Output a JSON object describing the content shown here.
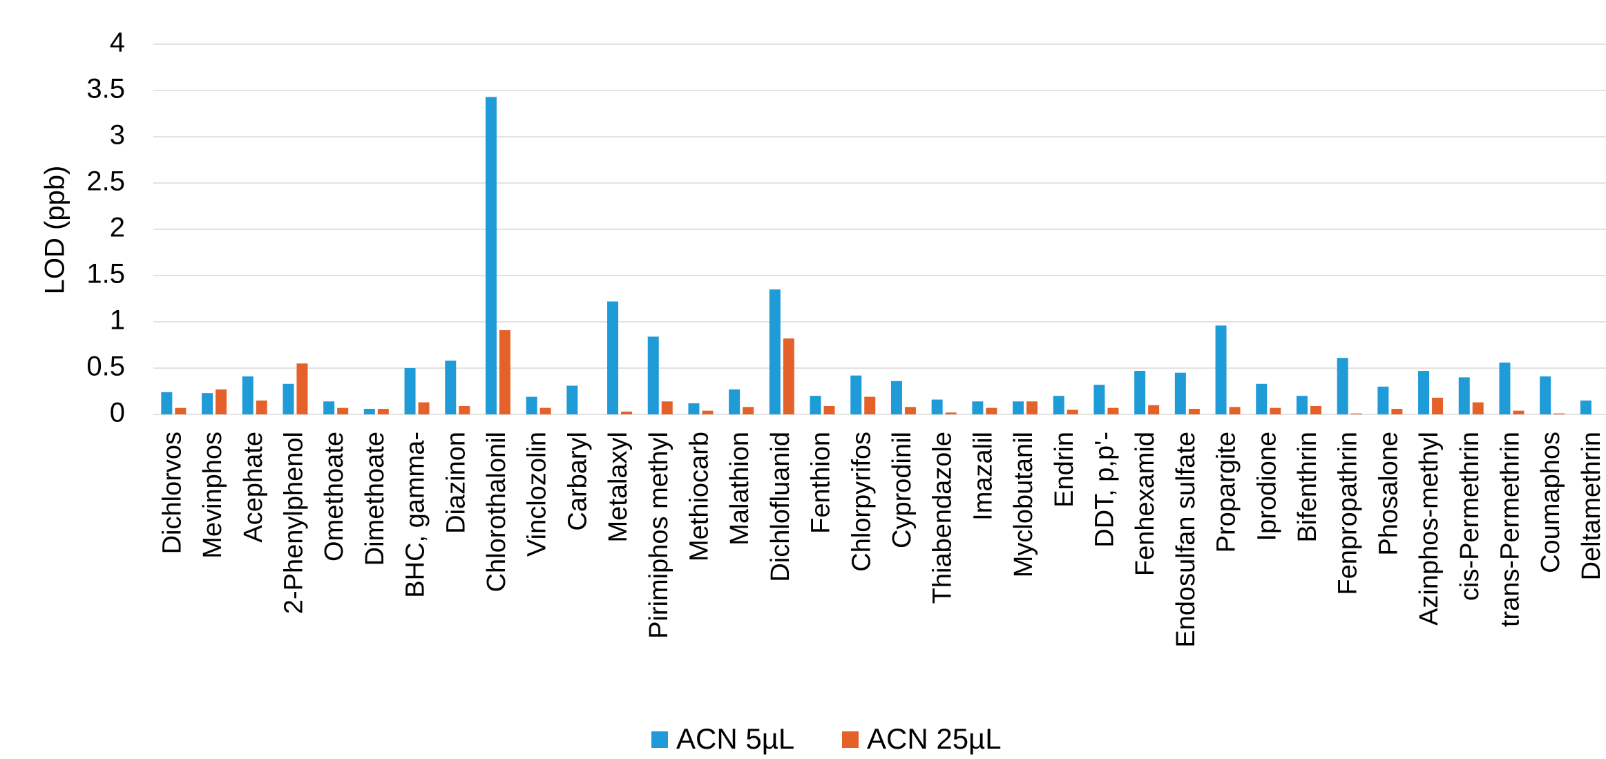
{
  "chart_data": {
    "type": "bar",
    "y_label": "LOD (ppb)",
    "categories": [
      "Dichlorvos",
      "Mevinphos",
      "Acephate",
      "2-Phenylphenol",
      "Omethoate",
      "Dimethoate",
      "BHC, gamma-",
      "Diazinon",
      "Chlorothalonil",
      "Vinclozolin",
      "Carbaryl",
      "Metalaxyl",
      "Pirimiphos methyl",
      "Methiocarb",
      "Malathion",
      "Dichlofluanid",
      "Fenthion",
      "Chlorpyrifos",
      "Cyprodinil",
      "Thiabendazole",
      "Imazalil",
      "Myclobutanil",
      "Endrin",
      "DDT, p,p'-",
      "Fenhexamid",
      "Endosulfan sulfate",
      "Propargite",
      "Iprodione",
      "Bifenthrin",
      "Fenpropathrin",
      "Phosalone",
      "Azinphos-methyl",
      "cis-Permethrin",
      "trans-Permethrin",
      "Coumaphos",
      "Deltamethrin"
    ],
    "series": [
      {
        "name": "ACN 5µL",
        "color": "#1f9bd7",
        "values": [
          0.24,
          0.23,
          0.41,
          0.33,
          0.14,
          0.06,
          0.5,
          0.58,
          3.43,
          0.19,
          0.31,
          1.22,
          0.84,
          0.12,
          0.27,
          1.35,
          0.2,
          0.42,
          0.36,
          0.16,
          0.14,
          0.14,
          0.2,
          0.32,
          0.47,
          0.45,
          0.96,
          0.33,
          0.2,
          0.61,
          0.3,
          0.47,
          0.4,
          0.56,
          0.41,
          0.15
        ]
      },
      {
        "name": "ACN 25µL",
        "color": "#e4622a",
        "values": [
          0.07,
          0.27,
          0.15,
          0.55,
          0.07,
          0.06,
          0.13,
          0.09,
          0.91,
          0.07,
          0,
          0.03,
          0.14,
          0.04,
          0.08,
          0.82,
          0.09,
          0.19,
          0.08,
          0.02,
          0.07,
          0.14,
          0.05,
          0.07,
          0.1,
          0.06,
          0.08,
          0.07,
          0.09,
          0.01,
          0.06,
          0.18,
          0.13,
          0.04,
          0.01,
          null
        ]
      }
    ],
    "ylim": [
      0,
      4
    ],
    "yticks": [
      0,
      0.5,
      1,
      1.5,
      2,
      2.5,
      3,
      3.5,
      4
    ],
    "grid": true,
    "legend": "bottom"
  }
}
